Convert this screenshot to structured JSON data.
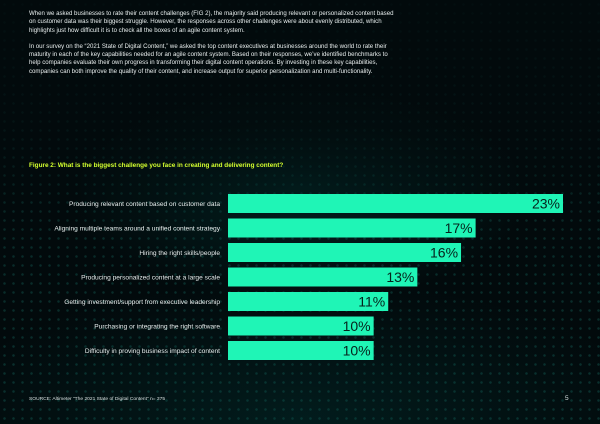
{
  "intro": {
    "paragraph1": "When we asked businesses to rate their content challenges (FIG 2), the majority said producing relevant or personalized content based on customer data was their biggest struggle. However, the responses across other challenges were about evenly distributed, which highlights just how difficult it is to check all the boxes of an agile content system.",
    "paragraph2": "In our survey on the “2021 State of Digital Content,” we asked the top content executives at businesses around the world to rate their maturity in each of the key capabilities needed for an agile content system. Based on their responses, we’ve identified benchmarks to help companies evaluate their own progress in transforming their digital content operations. By investing in these key capabilities, companies can both improve the quality of their content, and increase output for superior personalization and multi-functionality."
  },
  "figure_title": "Figure 2: What is the biggest challenge you face in creating and delivering content?",
  "chart_data": {
    "type": "bar",
    "orientation": "horizontal",
    "categories": [
      "Producing relevant content based on customer data",
      "Aligning multiple teams around a unified content strategy",
      "Hiring the right skills/people",
      "Producing personalized content at a large scale",
      "Getting investment/support from executive leadership",
      "Purchasing or integrating the right software",
      "Difficulty in proving business impact of content"
    ],
    "values": [
      23,
      17,
      16,
      13,
      11,
      10,
      10
    ],
    "value_labels": [
      "23%",
      "17%",
      "16%",
      "13%",
      "11%",
      "10%",
      "10%"
    ],
    "unit": "%",
    "xlim": [
      0,
      23
    ],
    "grid": false,
    "legend": "none",
    "bar_color": "#1ff5b6",
    "label_color": "#05231c"
  },
  "source": "SOURCE: Altimeter “The 2021 State of Digital Content” n= 375",
  "page_number": "5"
}
